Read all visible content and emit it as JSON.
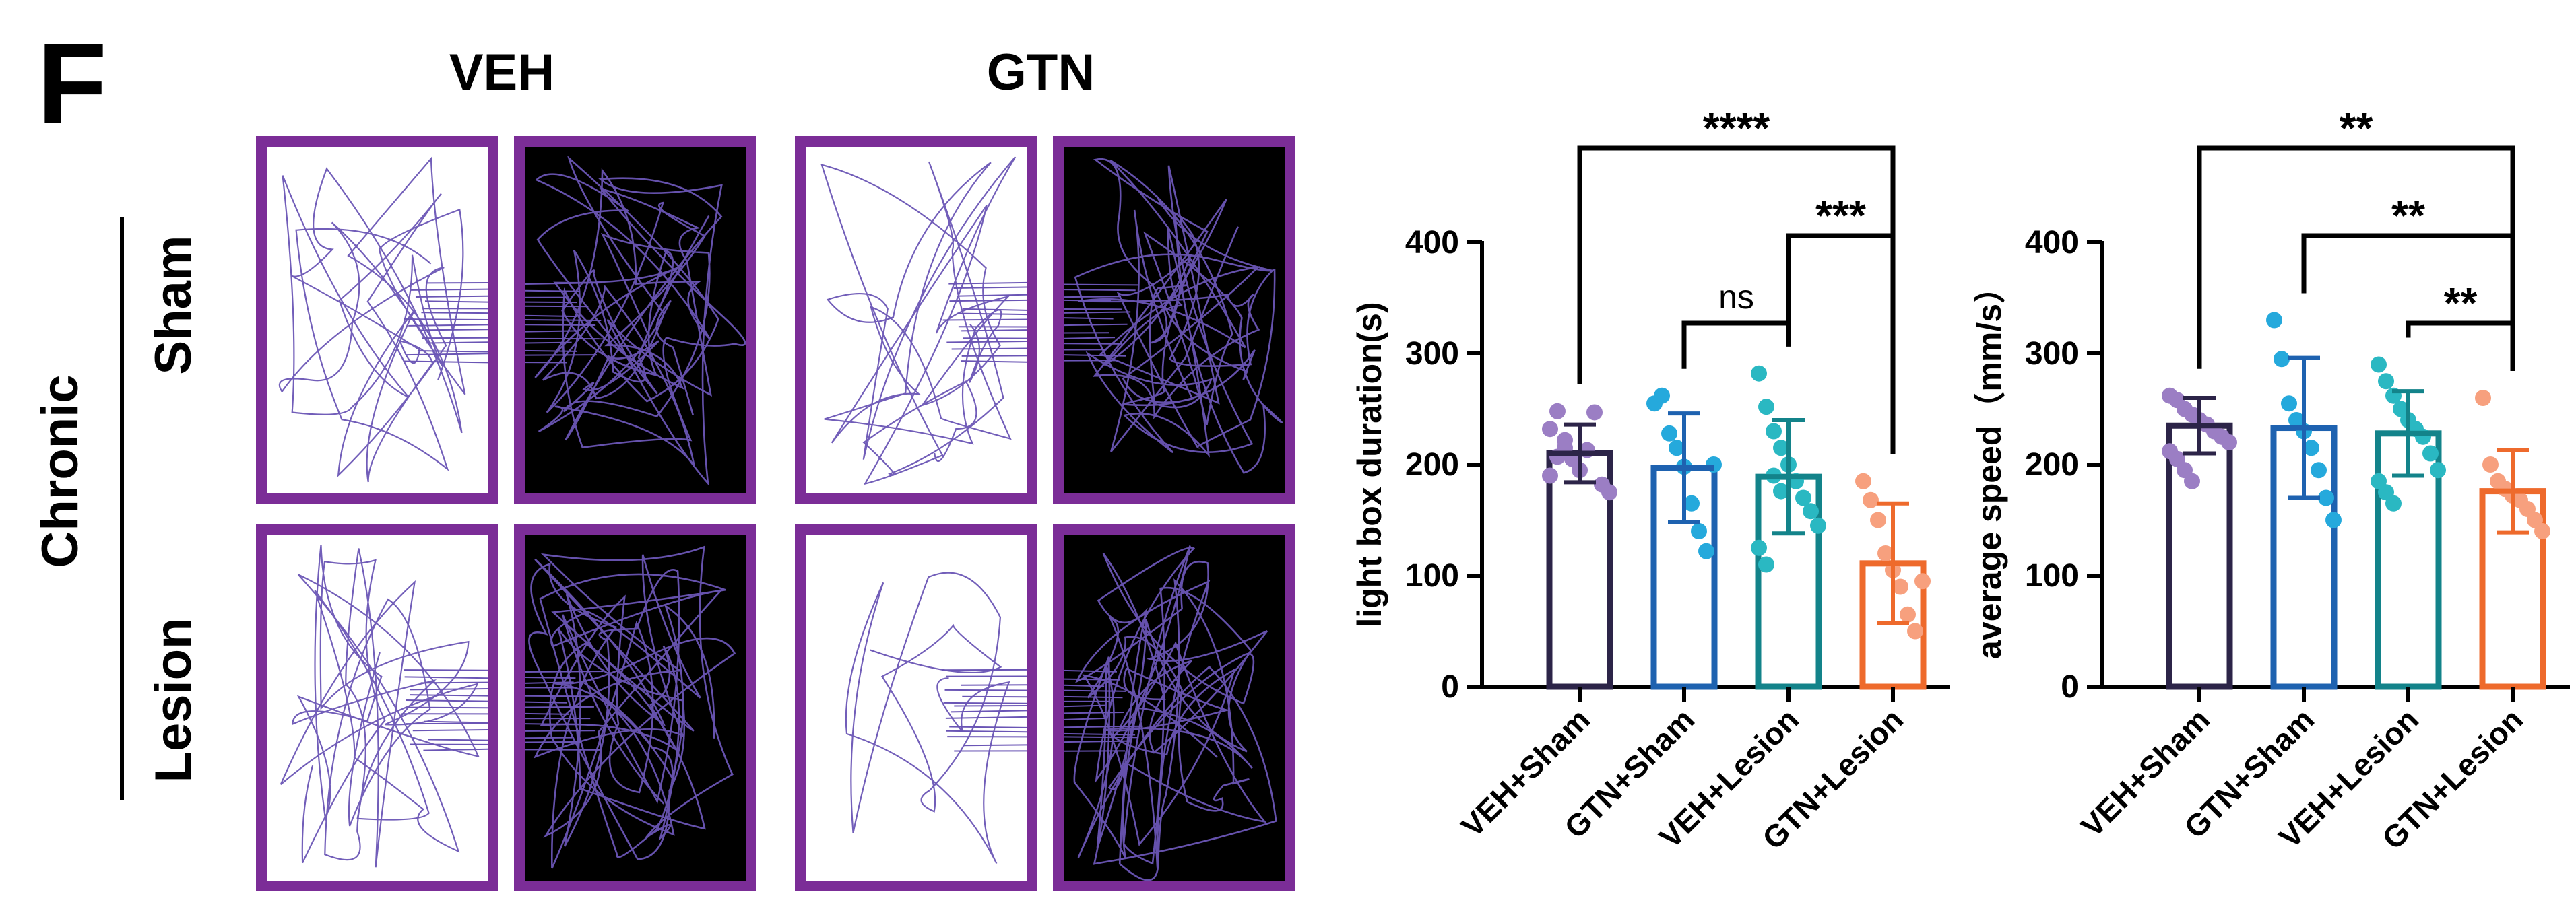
{
  "panel_label": "F",
  "columns": [
    "VEH",
    "GTN"
  ],
  "group_label": "Chronic",
  "rows": [
    "Sham",
    "Lesion"
  ],
  "colors": {
    "frame": "#7b2d97",
    "track": "#6a55b5",
    "series": [
      "#2c2448",
      "#1e62b0",
      "#13838a",
      "#ee6a2c"
    ],
    "points": [
      "#9b7ec4",
      "#25a9dc",
      "#2ab8c2",
      "#f7a07e"
    ]
  },
  "chart_data": [
    {
      "type": "bar",
      "title": "",
      "xlabel": "",
      "ylabel": "light box duration(s)",
      "ylim": [
        0,
        400
      ],
      "yticks": [
        0,
        100,
        200,
        300,
        400
      ],
      "categories": [
        "VEH+Sham",
        "GTN+Sham",
        "VEH+Lesion",
        "GTN+Lesion"
      ],
      "values": [
        210,
        197,
        189,
        111
      ],
      "sd": [
        26,
        49,
        51,
        54
      ],
      "points": [
        [
          232,
          248,
          215,
          205,
          195,
          213,
          247,
          182,
          175,
          190,
          207,
          222
        ],
        [
          255,
          262,
          228,
          215,
          198,
          165,
          140,
          122,
          200
        ],
        [
          282,
          252,
          230,
          215,
          200,
          185,
          170,
          158,
          145,
          125,
          110,
          190,
          176
        ],
        [
          185,
          168,
          150,
          120,
          105,
          90,
          65,
          50,
          95
        ]
      ],
      "annotations": [
        {
          "from": 0,
          "to": 3,
          "text": "****"
        },
        {
          "from": 2,
          "to": 3,
          "text": "***"
        },
        {
          "from": 1,
          "to": 2,
          "text": "ns"
        }
      ]
    },
    {
      "type": "bar",
      "title": "",
      "xlabel": "",
      "ylabel": "average speed（mm/s）",
      "ylim": [
        0,
        400
      ],
      "yticks": [
        0,
        100,
        200,
        300,
        400
      ],
      "categories": [
        "VEH+Sham",
        "GTN+Sham",
        "VEH+Lesion",
        "GTN+Lesion"
      ],
      "values": [
        235,
        233,
        228,
        176
      ],
      "sd": [
        25,
        63,
        38,
        37
      ],
      "points": [
        [
          262,
          258,
          250,
          245,
          240,
          236,
          230,
          225,
          220,
          212,
          205,
          195,
          185
        ],
        [
          330,
          295,
          255,
          240,
          230,
          215,
          195,
          170,
          150
        ],
        [
          290,
          275,
          262,
          250,
          240,
          232,
          225,
          210,
          195,
          185,
          175,
          165
        ],
        [
          260,
          200,
          185,
          178,
          172,
          168,
          160,
          150,
          140
        ]
      ],
      "annotations": [
        {
          "from": 0,
          "to": 3,
          "text": "**"
        },
        {
          "from": 1,
          "to": 3,
          "text": "**"
        },
        {
          "from": 2,
          "to": 3,
          "text": "**"
        }
      ]
    }
  ]
}
